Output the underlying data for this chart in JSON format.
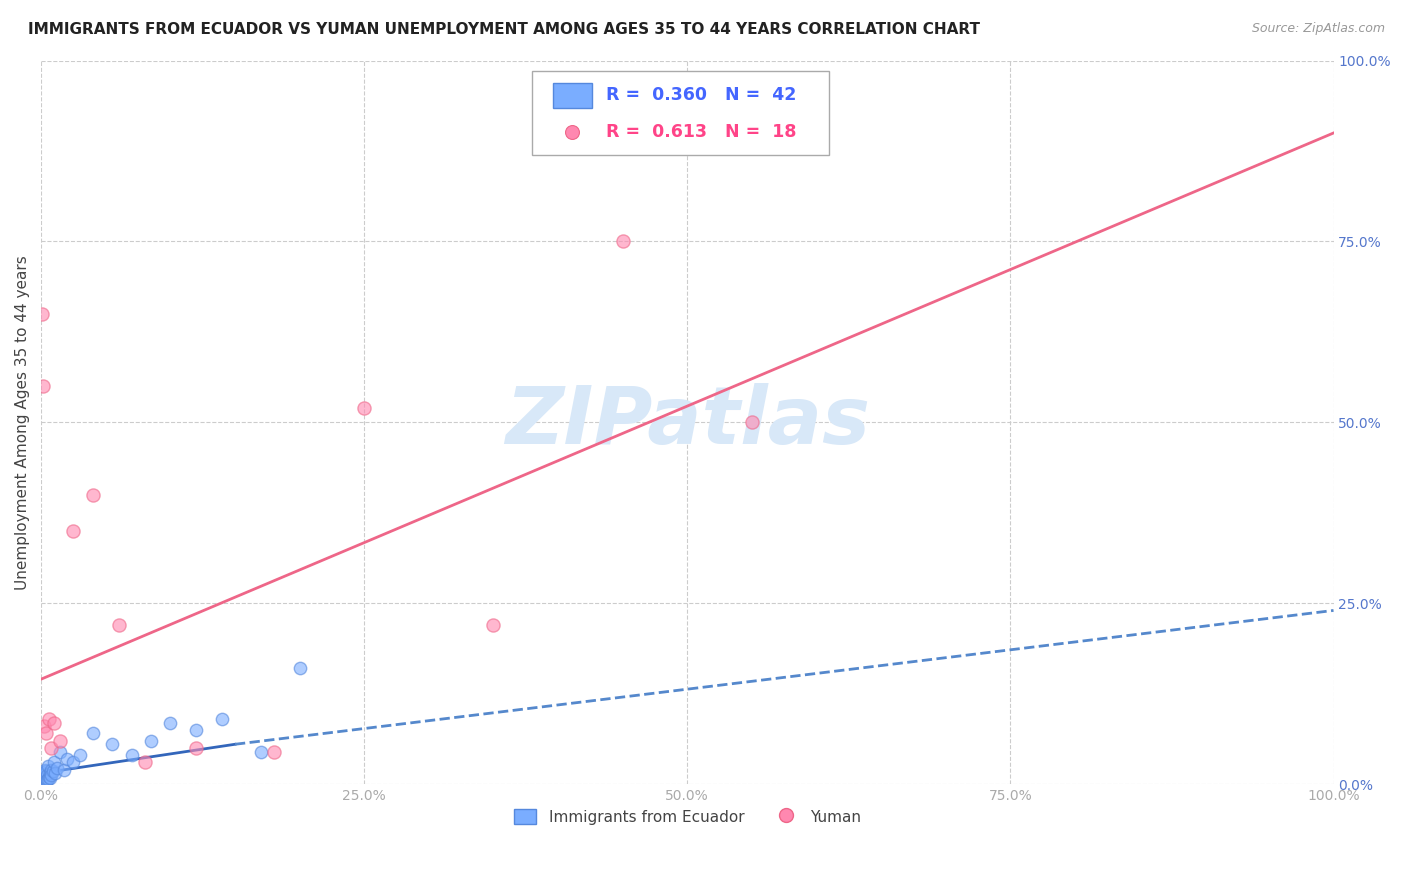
{
  "title": "IMMIGRANTS FROM ECUADOR VS YUMAN UNEMPLOYMENT AMONG AGES 35 TO 44 YEARS CORRELATION CHART",
  "source": "Source: ZipAtlas.com",
  "ylabel": "Unemployment Among Ages 35 to 44 years",
  "legend_label1": "Immigrants from Ecuador",
  "legend_label2": "Yuman",
  "r1": "0.360",
  "n1": "42",
  "r2": "0.613",
  "n2": "18",
  "blue_color": "#7aadff",
  "blue_edge_color": "#5588dd",
  "pink_color": "#ff88b0",
  "pink_edge_color": "#ee6688",
  "blue_line_solid_color": "#3366bb",
  "blue_line_dash_color": "#5588cc",
  "pink_line_color": "#ee6688",
  "watermark": "ZIPatlas",
  "watermark_color": "#d8e8f8",
  "blue_scatter_x": [
    0.05,
    0.08,
    0.1,
    0.12,
    0.15,
    0.18,
    0.2,
    0.22,
    0.25,
    0.28,
    0.3,
    0.32,
    0.35,
    0.38,
    0.4,
    0.42,
    0.45,
    0.5,
    0.55,
    0.6,
    0.65,
    0.7,
    0.75,
    0.8,
    0.9,
    1.0,
    1.1,
    1.2,
    1.5,
    1.8,
    2.0,
    2.5,
    3.0,
    4.0,
    5.5,
    7.0,
    8.5,
    10.0,
    12.0,
    14.0,
    17.0,
    20.0
  ],
  "blue_scatter_y": [
    0.3,
    0.8,
    0.5,
    1.2,
    0.7,
    1.5,
    0.4,
    1.0,
    0.6,
    2.0,
    0.9,
    1.4,
    0.5,
    0.8,
    1.8,
    1.2,
    0.6,
    2.5,
    0.7,
    1.0,
    1.5,
    0.8,
    2.0,
    1.2,
    1.8,
    3.0,
    1.5,
    2.2,
    4.5,
    2.0,
    3.5,
    3.0,
    4.0,
    7.0,
    5.5,
    4.0,
    6.0,
    8.5,
    7.5,
    9.0,
    4.5,
    16.0
  ],
  "pink_scatter_x": [
    0.05,
    0.15,
    0.25,
    0.4,
    0.6,
    0.8,
    1.0,
    1.5,
    2.5,
    4.0,
    6.0,
    8.0,
    12.0,
    18.0,
    25.0,
    35.0,
    45.0,
    55.0
  ],
  "pink_scatter_y": [
    65.0,
    55.0,
    8.0,
    7.0,
    9.0,
    5.0,
    8.5,
    6.0,
    35.0,
    40.0,
    22.0,
    3.0,
    5.0,
    4.5,
    52.0,
    22.0,
    75.0,
    50.0
  ],
  "pink_line_x0": 0.0,
  "pink_line_y0": 14.5,
  "pink_line_x1": 100.0,
  "pink_line_y1": 90.0,
  "blue_line_solid_x0": 0.0,
  "blue_line_solid_y0": 1.5,
  "blue_line_solid_x1": 15.0,
  "blue_line_solid_y1": 5.5,
  "blue_line_dash_x0": 15.0,
  "blue_line_dash_y0": 5.5,
  "blue_line_dash_x1": 100.0,
  "blue_line_dash_y1": 24.0,
  "xmin": 0.0,
  "xmax": 100.0,
  "ymin": 0.0,
  "ymax": 100.0,
  "xticks": [
    0,
    25,
    50,
    75,
    100
  ],
  "yticks": [
    0,
    25,
    50,
    75,
    100
  ],
  "xtick_labels": [
    "0.0%",
    "25.0%",
    "50.0%",
    "75.0%",
    "100.0%"
  ],
  "ytick_labels": [
    "0.0%",
    "25.0%",
    "50.0%",
    "75.0%",
    "100.0%"
  ],
  "grid_color": "#cccccc",
  "tick_color": "#aaaaaa",
  "background_color": "#ffffff"
}
